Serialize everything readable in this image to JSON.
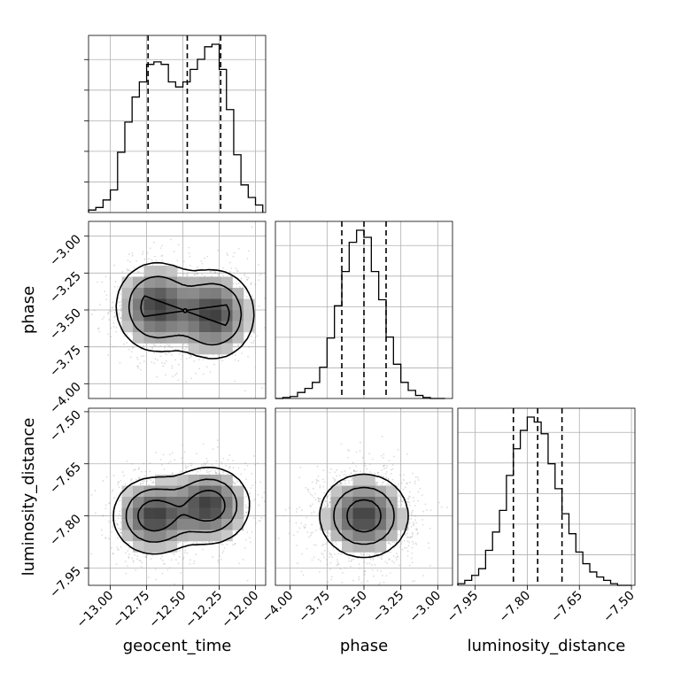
{
  "chart_data": {
    "type": "corner",
    "grid": true,
    "parameters": [
      {
        "name": "geocent_time",
        "label": "geocent_time",
        "range": [
          -13.15,
          -11.93
        ],
        "ticks": [
          "−13.00",
          "−12.75",
          "−12.50",
          "−12.25",
          "−12.00"
        ],
        "tick_values": [
          -13.0,
          -12.75,
          -12.5,
          -12.25,
          -12.0
        ],
        "quantiles": [
          -12.74,
          -12.47,
          -12.24
        ],
        "histogram": {
          "edges": [
            -13.15,
            -13.1,
            -13.05,
            -13.0,
            -12.95,
            -12.9,
            -12.85,
            -12.8,
            -12.75,
            -12.7,
            -12.65,
            -12.6,
            -12.55,
            -12.5,
            -12.45,
            -12.4,
            -12.35,
            -12.3,
            -12.25,
            -12.2,
            -12.15,
            -12.1,
            -12.05,
            -12.0,
            -11.95
          ],
          "counts": [
            1,
            2,
            5,
            9,
            24,
            36,
            46,
            52,
            59,
            60,
            59,
            52,
            50,
            52,
            57,
            61,
            66,
            67,
            57,
            41,
            23,
            11,
            6,
            3
          ]
        }
      },
      {
        "name": "phase",
        "label": "phase",
        "range": [
          -4.1,
          -2.9
        ],
        "ticks": [
          "−4.00",
          "−3.75",
          "−3.50",
          "−3.25",
          "−3.00"
        ],
        "tick_values": [
          -4.0,
          -3.75,
          -3.5,
          -3.25,
          -3.0
        ],
        "quantiles": [
          -3.65,
          -3.5,
          -3.35
        ],
        "histogram": {
          "edges": [
            -4.1,
            -4.05,
            -4.0,
            -3.95,
            -3.9,
            -3.85,
            -3.8,
            -3.75,
            -3.7,
            -3.65,
            -3.6,
            -3.55,
            -3.5,
            -3.45,
            -3.4,
            -3.35,
            -3.3,
            -3.25,
            -3.2,
            -3.15,
            -3.1,
            -3.05,
            -3.0,
            -2.95
          ],
          "counts": [
            0,
            1,
            2,
            6,
            10,
            16,
            31,
            60,
            92,
            126,
            155,
            167,
            160,
            126,
            98,
            61,
            34,
            16,
            8,
            3,
            1,
            0,
            0
          ]
        }
      },
      {
        "name": "luminosity_distance",
        "label": "luminosity_distance",
        "range": [
          -8.0,
          -7.49
        ],
        "ticks": [
          "−7.95",
          "−7.80",
          "−7.65",
          "−7.50"
        ],
        "tick_values": [
          -7.95,
          -7.8,
          -7.65,
          -7.5
        ],
        "quantiles": [
          -7.84,
          -7.77,
          -7.7
        ],
        "histogram": {
          "edges": [
            -8.0,
            -7.98,
            -7.96,
            -7.94,
            -7.92,
            -7.9,
            -7.88,
            -7.86,
            -7.84,
            -7.82,
            -7.8,
            -7.78,
            -7.76,
            -7.74,
            -7.72,
            -7.7,
            -7.68,
            -7.66,
            -7.64,
            -7.62,
            -7.6,
            -7.58,
            -7.56,
            -7.54,
            -7.52,
            -7.5
          ],
          "counts": [
            1,
            3,
            6,
            10,
            21,
            32,
            45,
            66,
            82,
            93,
            101,
            98,
            91,
            73,
            58,
            43,
            31,
            20,
            13,
            8,
            5,
            3,
            1,
            0,
            0
          ]
        }
      }
    ],
    "pairs": [
      {
        "x": "geocent_time",
        "y": "phase",
        "peaks": [
          [
            -12.68,
            -3.48
          ],
          [
            -12.29,
            -3.53
          ]
        ],
        "spread": [
          0.14,
          0.15
        ]
      },
      {
        "x": "geocent_time",
        "y": "luminosity_distance",
        "peaks": [
          [
            -12.7,
            -7.8
          ],
          [
            -12.32,
            -7.77
          ]
        ],
        "spread": [
          0.14,
          0.055
        ]
      },
      {
        "x": "phase",
        "y": "luminosity_distance",
        "peaks": [
          [
            -3.5,
            -7.8
          ]
        ],
        "spread": [
          0.15,
          0.06
        ]
      }
    ]
  }
}
